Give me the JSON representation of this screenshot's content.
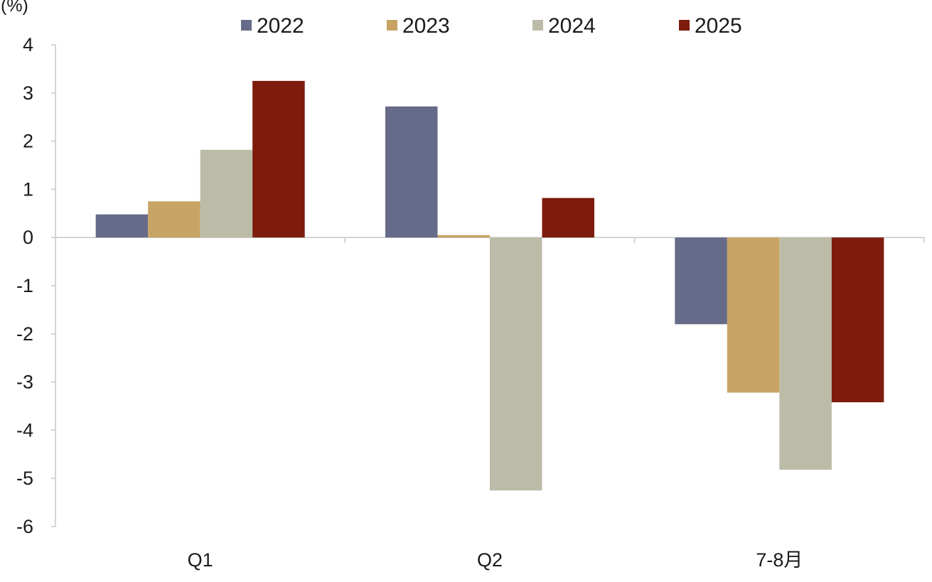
{
  "chart_data": {
    "type": "bar",
    "title": "",
    "xlabel": "",
    "ylabel": "(%)",
    "ylim": [
      -6,
      4
    ],
    "yticks": [
      4,
      3,
      2,
      1,
      0,
      -1,
      -2,
      -3,
      -4,
      -5,
      -6
    ],
    "categories": [
      "Q1",
      "Q2",
      "7-8月"
    ],
    "series": [
      {
        "name": "2022",
        "color": "#666b89",
        "values": [
          0.48,
          2.72,
          -1.8
        ]
      },
      {
        "name": "2023",
        "color": "#c8a464",
        "values": [
          0.75,
          0.05,
          -3.22
        ]
      },
      {
        "name": "2024",
        "color": "#bcbba8",
        "values": [
          1.82,
          -5.25,
          -4.82
        ]
      },
      {
        "name": "2025",
        "color": "#7d1b0c",
        "values": [
          3.25,
          0.82,
          -3.42
        ]
      }
    ],
    "legend_position": "top",
    "grid": false
  }
}
